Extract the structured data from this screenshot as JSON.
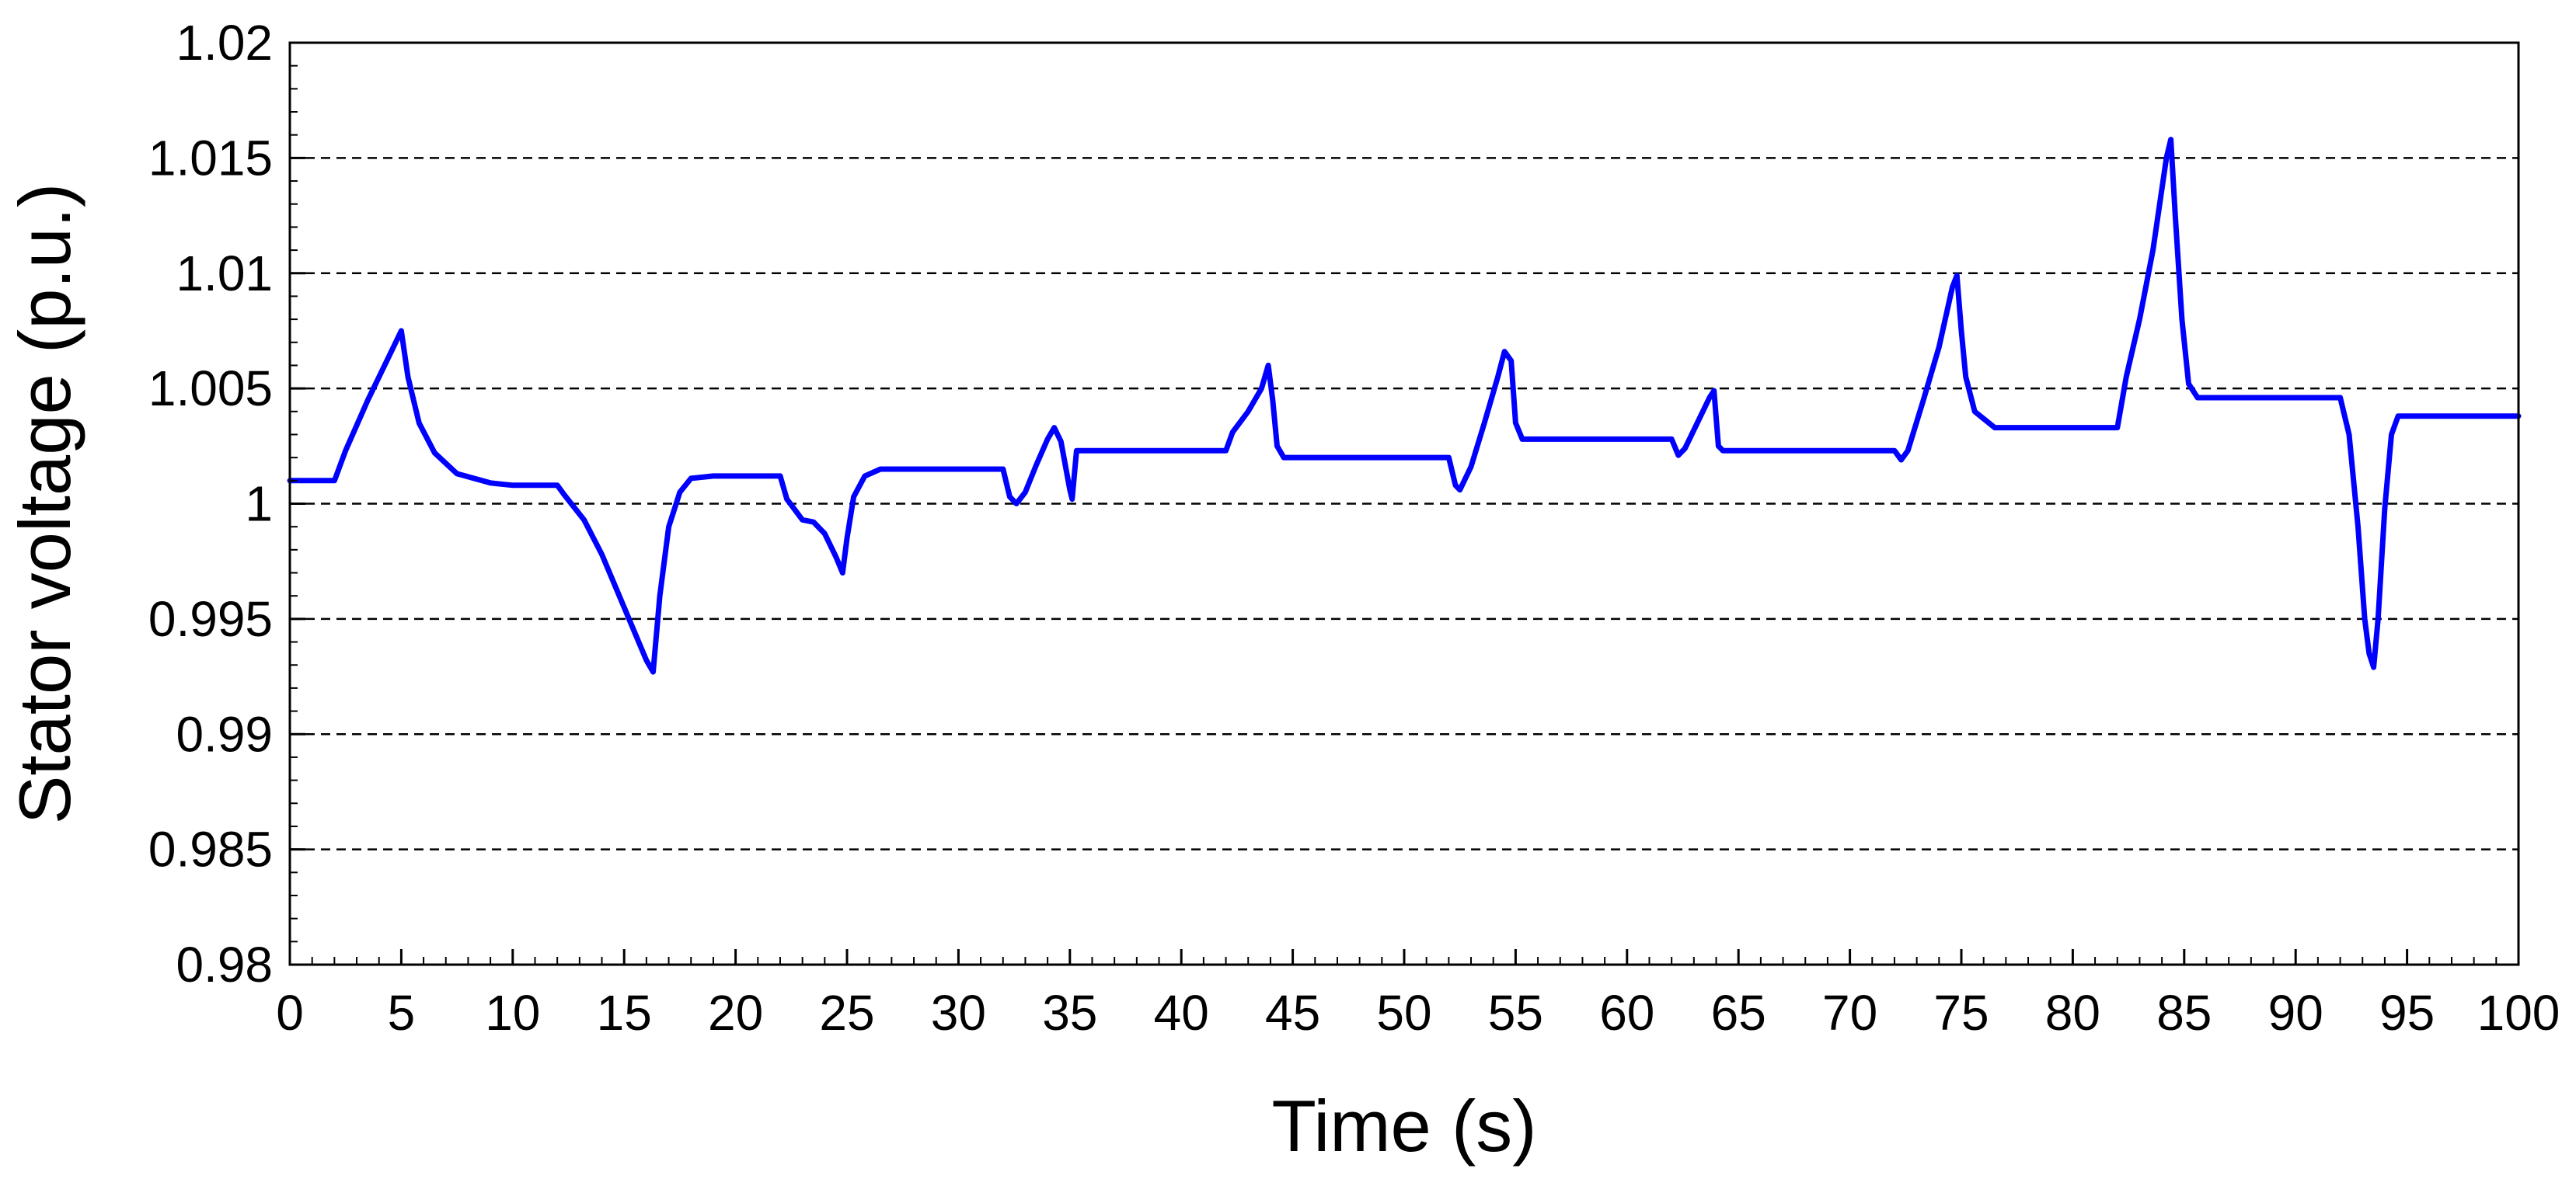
{
  "chart_data": {
    "type": "line",
    "title": "",
    "xlabel": "Time (s)",
    "ylabel": "Stator voltage (p.u.)",
    "xlim": [
      0,
      100
    ],
    "ylim": [
      0.98,
      1.02
    ],
    "x_ticks": [
      "0",
      "5",
      "10",
      "15",
      "20",
      "25",
      "30",
      "35",
      "40",
      "45",
      "50",
      "55",
      "60",
      "65",
      "70",
      "75",
      "80",
      "85",
      "90",
      "95",
      "100"
    ],
    "y_ticks": [
      "0.98",
      "0.985",
      "0.99",
      "0.995",
      "1",
      "1.005",
      "1.01",
      "1.015",
      "1.02"
    ],
    "grid": "horizontal dashed",
    "legend": "none",
    "series": [
      {
        "color": "#0000ff",
        "points": [
          [
            0,
            1.001
          ],
          [
            2,
            1.001
          ],
          [
            2.5,
            1.0023
          ],
          [
            3.5,
            1.0045
          ],
          [
            4.5,
            1.0065
          ],
          [
            5,
            1.0075
          ],
          [
            5.3,
            1.0055
          ],
          [
            5.8,
            1.0035
          ],
          [
            6.5,
            1.0022
          ],
          [
            7.5,
            1.0013
          ],
          [
            9,
            1.0009
          ],
          [
            10,
            1.0008
          ],
          [
            12,
            1.0008
          ],
          [
            12.3,
            1.0004
          ],
          [
            13.2,
            0.9993
          ],
          [
            14,
            0.9978
          ],
          [
            15,
            0.9955
          ],
          [
            16,
            0.9932
          ],
          [
            16.3,
            0.9927
          ],
          [
            16.6,
            0.996
          ],
          [
            17,
            0.999
          ],
          [
            17.5,
            1.0005
          ],
          [
            18,
            1.0011
          ],
          [
            19,
            1.0012
          ],
          [
            22,
            1.0012
          ],
          [
            22.3,
            1.0002
          ],
          [
            23,
            0.9993
          ],
          [
            23.5,
            0.9992
          ],
          [
            24,
            0.9987
          ],
          [
            24.5,
            0.9977
          ],
          [
            24.8,
            0.997
          ],
          [
            25,
            0.9985
          ],
          [
            25.3,
            1.0003
          ],
          [
            25.8,
            1.0012
          ],
          [
            26.5,
            1.0015
          ],
          [
            32,
            1.0015
          ],
          [
            32.3,
            1.0003
          ],
          [
            32.6,
            1.0
          ],
          [
            33,
            1.0005
          ],
          [
            33.5,
            1.0017
          ],
          [
            34,
            1.0028
          ],
          [
            34.3,
            1.0033
          ],
          [
            34.6,
            1.0027
          ],
          [
            35,
            1.0006
          ],
          [
            35.1,
            1.0002
          ],
          [
            35.3,
            1.0023
          ],
          [
            42,
            1.0023
          ],
          [
            42.3,
            1.0031
          ],
          [
            43,
            1.004
          ],
          [
            43.6,
            1.005
          ],
          [
            43.9,
            1.006
          ],
          [
            44.1,
            1.0045
          ],
          [
            44.3,
            1.0025
          ],
          [
            44.6,
            1.002
          ],
          [
            52,
            1.002
          ],
          [
            52.3,
            1.0008
          ],
          [
            52.5,
            1.0006
          ],
          [
            53,
            1.0016
          ],
          [
            53.6,
            1.0035
          ],
          [
            54.2,
            1.0055
          ],
          [
            54.5,
            1.0066
          ],
          [
            54.8,
            1.0062
          ],
          [
            55,
            1.0035
          ],
          [
            55.3,
            1.0028
          ],
          [
            62,
            1.0028
          ],
          [
            62.3,
            1.0021
          ],
          [
            62.6,
            1.0024
          ],
          [
            63.2,
            1.0036
          ],
          [
            63.7,
            1.0046
          ],
          [
            63.9,
            1.0049
          ],
          [
            64.1,
            1.0025
          ],
          [
            64.3,
            1.0023
          ],
          [
            72,
            1.0023
          ],
          [
            72.3,
            1.0019
          ],
          [
            72.6,
            1.0023
          ],
          [
            73.3,
            1.0045
          ],
          [
            74,
            1.0068
          ],
          [
            74.6,
            1.0094
          ],
          [
            74.8,
            1.0099
          ],
          [
            75,
            1.0075
          ],
          [
            75.2,
            1.0055
          ],
          [
            75.6,
            1.004
          ],
          [
            76.5,
            1.0033
          ],
          [
            82,
            1.0033
          ],
          [
            82.4,
            1.0055
          ],
          [
            83,
            1.008
          ],
          [
            83.6,
            1.011
          ],
          [
            84.2,
            1.015
          ],
          [
            84.4,
            1.0158
          ],
          [
            84.6,
            1.0125
          ],
          [
            84.9,
            1.008
          ],
          [
            85.2,
            1.0052
          ],
          [
            85.6,
            1.0046
          ],
          [
            92,
            1.0046
          ],
          [
            92.4,
            1.003
          ],
          [
            92.8,
            0.999
          ],
          [
            93.1,
            0.995
          ],
          [
            93.3,
            0.9935
          ],
          [
            93.5,
            0.9929
          ],
          [
            93.7,
            0.995
          ],
          [
            94,
            0.9998
          ],
          [
            94.3,
            1.003
          ],
          [
            94.6,
            1.0038
          ],
          [
            100,
            1.0038
          ]
        ]
      }
    ]
  }
}
